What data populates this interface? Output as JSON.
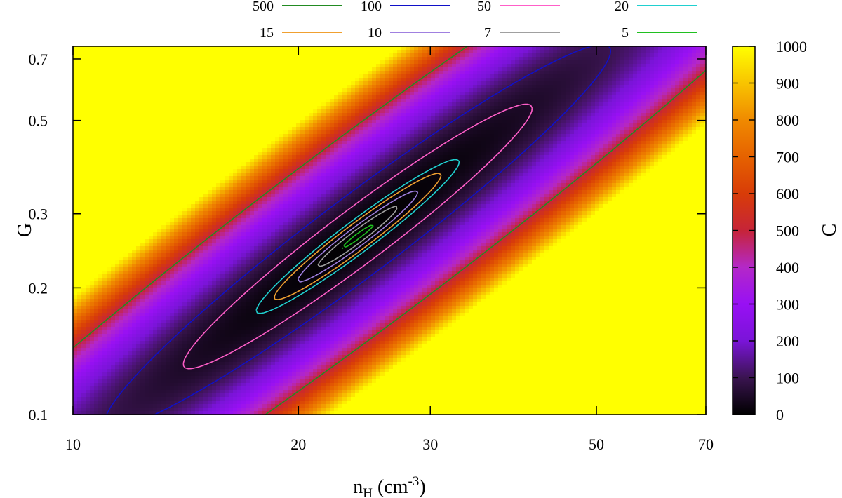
{
  "chart_data": {
    "type": "heatmap",
    "title": "",
    "xlabel": "n",
    "xlabel_sub": "H",
    "xlabel_unit": " (cm",
    "xlabel_unit_sup": "-3",
    "xlabel_unit_close": ")",
    "ylabel": "G",
    "x_scale": "log",
    "y_scale": "log",
    "xlim": [
      10,
      70
    ],
    "ylim": [
      0.1,
      0.75
    ],
    "x_ticks": [
      10,
      20,
      30,
      50,
      70
    ],
    "y_ticks": [
      0.1,
      0.2,
      0.3,
      0.5,
      0.7
    ],
    "x_tick_labels": [
      "10",
      "20",
      "30",
      "50",
      "70"
    ],
    "y_tick_labels": [
      "0.1",
      "0.2",
      "0.3",
      "0.5",
      "0.7"
    ],
    "colorbar": {
      "label": "C",
      "range": [
        0,
        1000
      ],
      "ticks": [
        0,
        100,
        200,
        300,
        400,
        500,
        600,
        700,
        800,
        900,
        1000
      ],
      "tick_labels": [
        "0",
        "100",
        "200",
        "300",
        "400",
        "500",
        "600",
        "700",
        "800",
        "900",
        "1000"
      ],
      "palette": "black-purple-violet-red-orange-yellow"
    },
    "minimum": {
      "n_H": 24,
      "G": 0.265
    },
    "contours": [
      {
        "name": "500",
        "level": 500,
        "color": "#228b22"
      },
      {
        "name": "100",
        "level": 100,
        "color": "#1010c8"
      },
      {
        "name": "50",
        "level": 50,
        "color": "#ff5ec8"
      },
      {
        "name": "20",
        "level": 20,
        "color": "#20d0d0"
      },
      {
        "name": "15",
        "level": 15,
        "color": "#f0a030"
      },
      {
        "name": "10",
        "level": 10,
        "color": "#a080e0"
      },
      {
        "name": "7",
        "level": 7,
        "color": "#a0a0a0"
      },
      {
        "name": "5",
        "level": 5,
        "color": "#20c020"
      }
    ],
    "legend_placement": "top",
    "grid": false
  }
}
